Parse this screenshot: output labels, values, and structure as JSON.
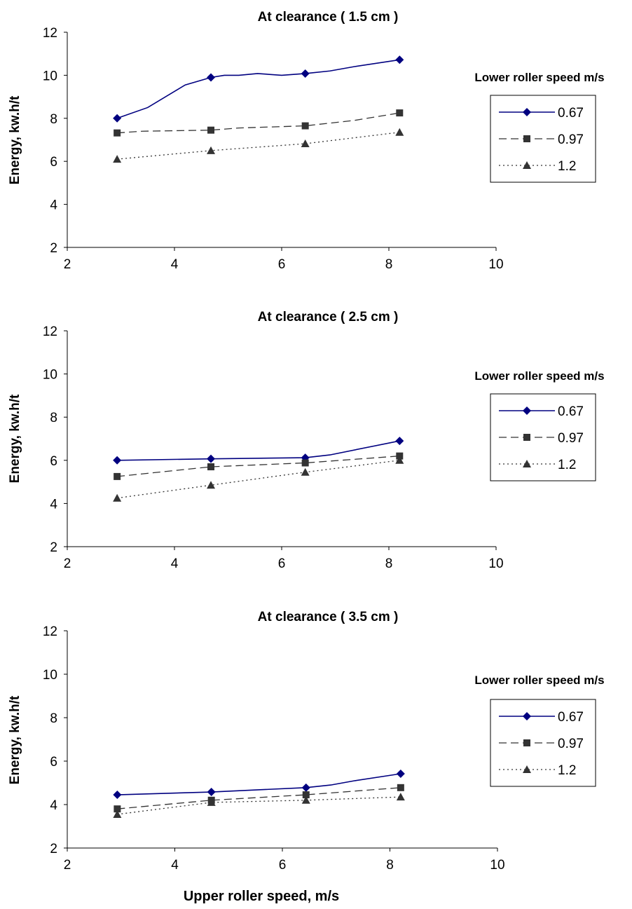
{
  "chart_data": [
    {
      "type": "line",
      "title": "At clearance  ( 1.5 cm )",
      "xlabel": "",
      "ylabel": "Energy, kw.h/t",
      "xlim": [
        2,
        10
      ],
      "ylim": [
        2,
        12
      ],
      "xticks": [
        "2",
        "4",
        "6",
        "8",
        "10"
      ],
      "yticks": [
        "2",
        "4",
        "6",
        "8",
        "10",
        "12"
      ],
      "grid": false,
      "legend_title": "Lower roller speed m/s",
      "legend_position": "right",
      "series": [
        {
          "name": "0.67",
          "color": "#000080",
          "dash": "solid",
          "marker": "diamond",
          "points": [
            [
              2.93,
              8.0
            ],
            [
              3.5,
              8.5
            ],
            [
              4.2,
              9.55
            ],
            [
              4.68,
              9.9
            ],
            [
              4.93,
              10.0
            ],
            [
              5.2,
              10.0
            ],
            [
              5.55,
              10.08
            ],
            [
              6.0,
              10.0
            ],
            [
              6.44,
              10.08
            ],
            [
              6.9,
              10.2
            ],
            [
              7.35,
              10.4
            ],
            [
              8.2,
              10.72
            ]
          ],
          "marker_points": [
            [
              2.93,
              8.0
            ],
            [
              4.68,
              9.9
            ],
            [
              6.44,
              10.08
            ],
            [
              8.2,
              10.72
            ]
          ]
        },
        {
          "name": "0.97",
          "color": "#333333",
          "dash": "long",
          "marker": "square",
          "points": [
            [
              2.93,
              7.32
            ],
            [
              3.4,
              7.4
            ],
            [
              4.68,
              7.45
            ],
            [
              5.2,
              7.55
            ],
            [
              6.44,
              7.65
            ],
            [
              7.35,
              7.9
            ],
            [
              8.2,
              8.25
            ]
          ],
          "marker_points": [
            [
              2.93,
              7.32
            ],
            [
              4.68,
              7.45
            ],
            [
              6.44,
              7.65
            ],
            [
              8.2,
              8.25
            ]
          ]
        },
        {
          "name": "1.2",
          "color": "#333333",
          "dash": "dotted",
          "marker": "triangle",
          "points": [
            [
              2.93,
              6.1
            ],
            [
              4.68,
              6.5
            ],
            [
              6.44,
              6.82
            ],
            [
              8.2,
              7.35
            ]
          ],
          "marker_points": [
            [
              2.93,
              6.1
            ],
            [
              4.68,
              6.5
            ],
            [
              6.44,
              6.82
            ],
            [
              8.2,
              7.35
            ]
          ]
        }
      ]
    },
    {
      "type": "line",
      "title": "At clearance  ( 2.5 cm )",
      "xlabel": "",
      "ylabel": "Energy, kw.h/t",
      "xlim": [
        2,
        10
      ],
      "ylim": [
        2,
        12
      ],
      "xticks": [
        "2",
        "4",
        "6",
        "8",
        "10"
      ],
      "yticks": [
        "2",
        "4",
        "6",
        "8",
        "10",
        "12"
      ],
      "grid": false,
      "legend_title": "Lower roller speed m/s",
      "legend_position": "right",
      "series": [
        {
          "name": "0.67",
          "color": "#000080",
          "dash": "solid",
          "marker": "diamond",
          "points": [
            [
              2.93,
              6.0
            ],
            [
              4.68,
              6.07
            ],
            [
              6.44,
              6.12
            ],
            [
              6.9,
              6.25
            ],
            [
              8.2,
              6.9
            ]
          ],
          "marker_points": [
            [
              2.93,
              6.0
            ],
            [
              4.68,
              6.07
            ],
            [
              6.44,
              6.12
            ],
            [
              8.2,
              6.9
            ]
          ]
        },
        {
          "name": "0.97",
          "color": "#333333",
          "dash": "long",
          "marker": "square",
          "points": [
            [
              2.93,
              5.25
            ],
            [
              4.68,
              5.7
            ],
            [
              6.44,
              5.88
            ],
            [
              8.2,
              6.2
            ]
          ],
          "marker_points": [
            [
              2.93,
              5.25
            ],
            [
              4.68,
              5.7
            ],
            [
              6.44,
              5.88
            ],
            [
              8.2,
              6.2
            ]
          ]
        },
        {
          "name": "1.2",
          "color": "#333333",
          "dash": "dotted",
          "marker": "triangle",
          "points": [
            [
              2.93,
              4.25
            ],
            [
              4.68,
              4.85
            ],
            [
              6.44,
              5.45
            ],
            [
              8.2,
              6.0
            ]
          ],
          "marker_points": [
            [
              2.93,
              4.25
            ],
            [
              4.68,
              4.85
            ],
            [
              6.44,
              5.45
            ],
            [
              8.2,
              6.0
            ]
          ]
        }
      ]
    },
    {
      "type": "line",
      "title": "At clearance  ( 3.5 cm )",
      "xlabel": "Upper roller speed, m/s",
      "ylabel": "Energy, kw.h/t",
      "xlim": [
        2,
        10
      ],
      "ylim": [
        2,
        12
      ],
      "xticks": [
        "2",
        "4",
        "6",
        "8",
        "10"
      ],
      "yticks": [
        "2",
        "4",
        "6",
        "8",
        "10",
        "12"
      ],
      "grid": false,
      "legend_title": "Lower roller speed m/s",
      "legend_position": "right",
      "series": [
        {
          "name": "0.67",
          "color": "#000080",
          "dash": "solid",
          "marker": "diamond",
          "points": [
            [
              2.93,
              4.45
            ],
            [
              4.68,
              4.58
            ],
            [
              6.44,
              4.78
            ],
            [
              6.9,
              4.9
            ],
            [
              7.35,
              5.1
            ],
            [
              8.2,
              5.42
            ]
          ],
          "marker_points": [
            [
              2.93,
              4.45
            ],
            [
              4.68,
              4.58
            ],
            [
              6.44,
              4.78
            ],
            [
              8.2,
              5.42
            ]
          ]
        },
        {
          "name": "0.97",
          "color": "#333333",
          "dash": "long",
          "marker": "square",
          "points": [
            [
              2.93,
              3.8
            ],
            [
              4.68,
              4.2
            ],
            [
              6.44,
              4.45
            ],
            [
              8.2,
              4.78
            ]
          ],
          "marker_points": [
            [
              2.93,
              3.8
            ],
            [
              4.68,
              4.2
            ],
            [
              6.44,
              4.45
            ],
            [
              8.2,
              4.78
            ]
          ]
        },
        {
          "name": "1.2",
          "color": "#333333",
          "dash": "dotted",
          "marker": "triangle",
          "points": [
            [
              2.93,
              3.55
            ],
            [
              4.68,
              4.1
            ],
            [
              6.44,
              4.2
            ],
            [
              8.2,
              4.35
            ]
          ],
          "marker_points": [
            [
              2.93,
              3.55
            ],
            [
              4.68,
              4.1
            ],
            [
              6.44,
              4.2
            ],
            [
              8.2,
              4.35
            ]
          ]
        }
      ]
    }
  ]
}
